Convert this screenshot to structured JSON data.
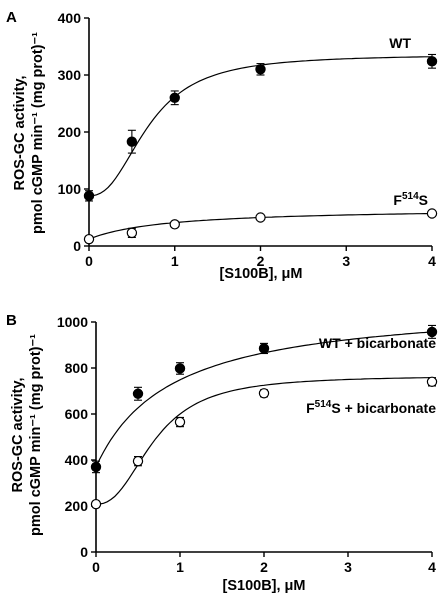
{
  "chart_data": [
    {
      "panel": "A",
      "type": "line",
      "xlabel": "[S100B], μM",
      "ylabel": "ROS-GC activity, pmol cGMP min⁻¹ (mg prot)⁻¹",
      "ylabel_line1": "ROS-GC activity,",
      "ylabel_line2": "pmol cGMP min⁻¹ (mg prot)⁻¹",
      "xlim": [
        0,
        4
      ],
      "ylim": [
        0,
        400
      ],
      "x_ticks": [
        0,
        1,
        2,
        3,
        4
      ],
      "y_ticks": [
        0,
        100,
        200,
        300,
        400
      ],
      "x_tick_labels": [
        "0",
        "1",
        "2",
        "3",
        "4"
      ],
      "y_tick_labels": [
        "0",
        "100",
        "200",
        "300",
        "400"
      ],
      "grid": false,
      "series": [
        {
          "name": "WT",
          "marker": "filled-circle",
          "curve": "sigmoid",
          "x": [
            0,
            0.5,
            1,
            2,
            4
          ],
          "y": [
            88,
            183,
            260,
            310,
            324
          ],
          "error": [
            9,
            20,
            12,
            10,
            12
          ]
        },
        {
          "name": "F514S",
          "name_base": "F",
          "name_sup": "514",
          "name_end": "S",
          "marker": "open-circle",
          "curve": "hyperbolic",
          "x": [
            0,
            0.5,
            1,
            2,
            4
          ],
          "y": [
            12,
            23,
            38,
            50,
            57
          ],
          "error": [
            4,
            8,
            4,
            3,
            4
          ]
        }
      ]
    },
    {
      "panel": "B",
      "type": "line",
      "xlabel": "[S100B], μM",
      "ylabel": "ROS-GC activity, pmol cGMP min⁻¹ (mg prot)⁻¹",
      "ylabel_line1": "ROS-GC activity,",
      "ylabel_line2": "pmol cGMP min⁻¹ (mg prot)⁻¹",
      "xlim": [
        0,
        4
      ],
      "ylim": [
        0,
        1000
      ],
      "x_ticks": [
        0,
        1,
        2,
        3,
        4
      ],
      "y_ticks": [
        0,
        200,
        400,
        600,
        800,
        1000
      ],
      "x_tick_labels": [
        "0",
        "1",
        "2",
        "3",
        "4"
      ],
      "y_tick_labels": [
        "0",
        "200",
        "400",
        "600",
        "800",
        "1000"
      ],
      "grid": false,
      "series": [
        {
          "name": "WT + bicarbonate",
          "marker": "filled-circle",
          "curve": "hyperbolic",
          "x": [
            0,
            0.5,
            1,
            2,
            4
          ],
          "y": [
            370,
            688,
            798,
            885,
            957
          ],
          "error": [
            25,
            28,
            25,
            22,
            28
          ]
        },
        {
          "name": "F514S + bicarbonate",
          "name_base": "F",
          "name_sup": "514",
          "name_end": "S + bicarbonate",
          "marker": "open-circle",
          "curve": "sigmoid",
          "x": [
            0,
            0.5,
            1,
            2,
            4
          ],
          "y": [
            208,
            395,
            565,
            690,
            740
          ],
          "error": [
            12,
            20,
            20,
            15,
            18
          ]
        }
      ]
    }
  ]
}
